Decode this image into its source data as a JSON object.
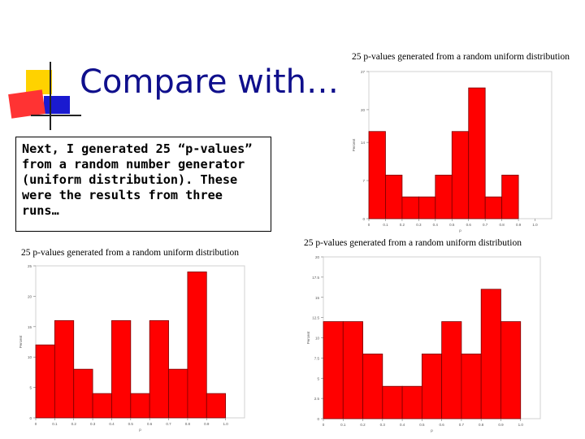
{
  "slide": {
    "title": "Compare with…",
    "text": "Next, I generated 25 “p-values” from a random number generator (uniform distribution). These were the results from three runs…"
  },
  "colors": {
    "bar": "#ff0000",
    "bar_stroke": "#7a0000",
    "title": "#0f0f8c"
  },
  "chart_data": [
    {
      "type": "bar",
      "title": "25 p-values generated from a random uniform distribution",
      "xlabel": "p",
      "ylabel": "Percent",
      "ylim": [
        0,
        27
      ],
      "yticks": [
        0,
        7,
        14,
        20,
        27
      ],
      "xticks": [
        "0",
        "0.1",
        "0.2",
        "0.3",
        "0.4",
        "0.5",
        "0.6",
        "0.7",
        "0.8",
        "0.9",
        "1.0"
      ],
      "categories": [
        "0–0.1",
        "0.1–0.2",
        "0.2–0.3",
        "0.3–0.4",
        "0.4–0.5",
        "0.5–0.6",
        "0.6–0.7",
        "0.7–0.8",
        "0.8–0.9",
        "0.9–1.0"
      ],
      "values": [
        16,
        8,
        4,
        4,
        8,
        16,
        24,
        4,
        8,
        0
      ]
    },
    {
      "type": "bar",
      "title": "25 p-values generated from a random uniform distribution",
      "xlabel": "p",
      "ylabel": "Percent",
      "ylim": [
        0,
        25
      ],
      "yticks": [
        0,
        5,
        10,
        15,
        20,
        25
      ],
      "xticks": [
        "0",
        "0.1",
        "0.2",
        "0.3",
        "0.4",
        "0.5",
        "0.6",
        "0.7",
        "0.8",
        "0.9",
        "1.0"
      ],
      "categories": [
        "0–0.1",
        "0.1–0.2",
        "0.2–0.3",
        "0.3–0.4",
        "0.4–0.5",
        "0.5–0.6",
        "0.6–0.7",
        "0.7–0.8",
        "0.8–0.9",
        "0.9–1.0"
      ],
      "values": [
        12,
        16,
        8,
        4,
        16,
        4,
        16,
        8,
        24,
        4
      ]
    },
    {
      "type": "bar",
      "title": "25 p-values generated from a random uniform distribution",
      "xlabel": "p",
      "ylabel": "Percent",
      "ylim": [
        0,
        20
      ],
      "yticks": [
        0,
        2.5,
        5,
        7.5,
        10,
        12.5,
        15,
        17.5,
        20
      ],
      "xticks": [
        "0",
        "0.1",
        "0.2",
        "0.3",
        "0.4",
        "0.5",
        "0.6",
        "0.7",
        "0.8",
        "0.9",
        "1.0"
      ],
      "categories": [
        "0–0.1",
        "0.1–0.2",
        "0.2–0.3",
        "0.3–0.4",
        "0.4–0.5",
        "0.5–0.6",
        "0.6–0.7",
        "0.7–0.8",
        "0.8–0.9",
        "0.9–1.0"
      ],
      "values": [
        12,
        12,
        8,
        4,
        4,
        8,
        12,
        8,
        16,
        12
      ]
    }
  ]
}
